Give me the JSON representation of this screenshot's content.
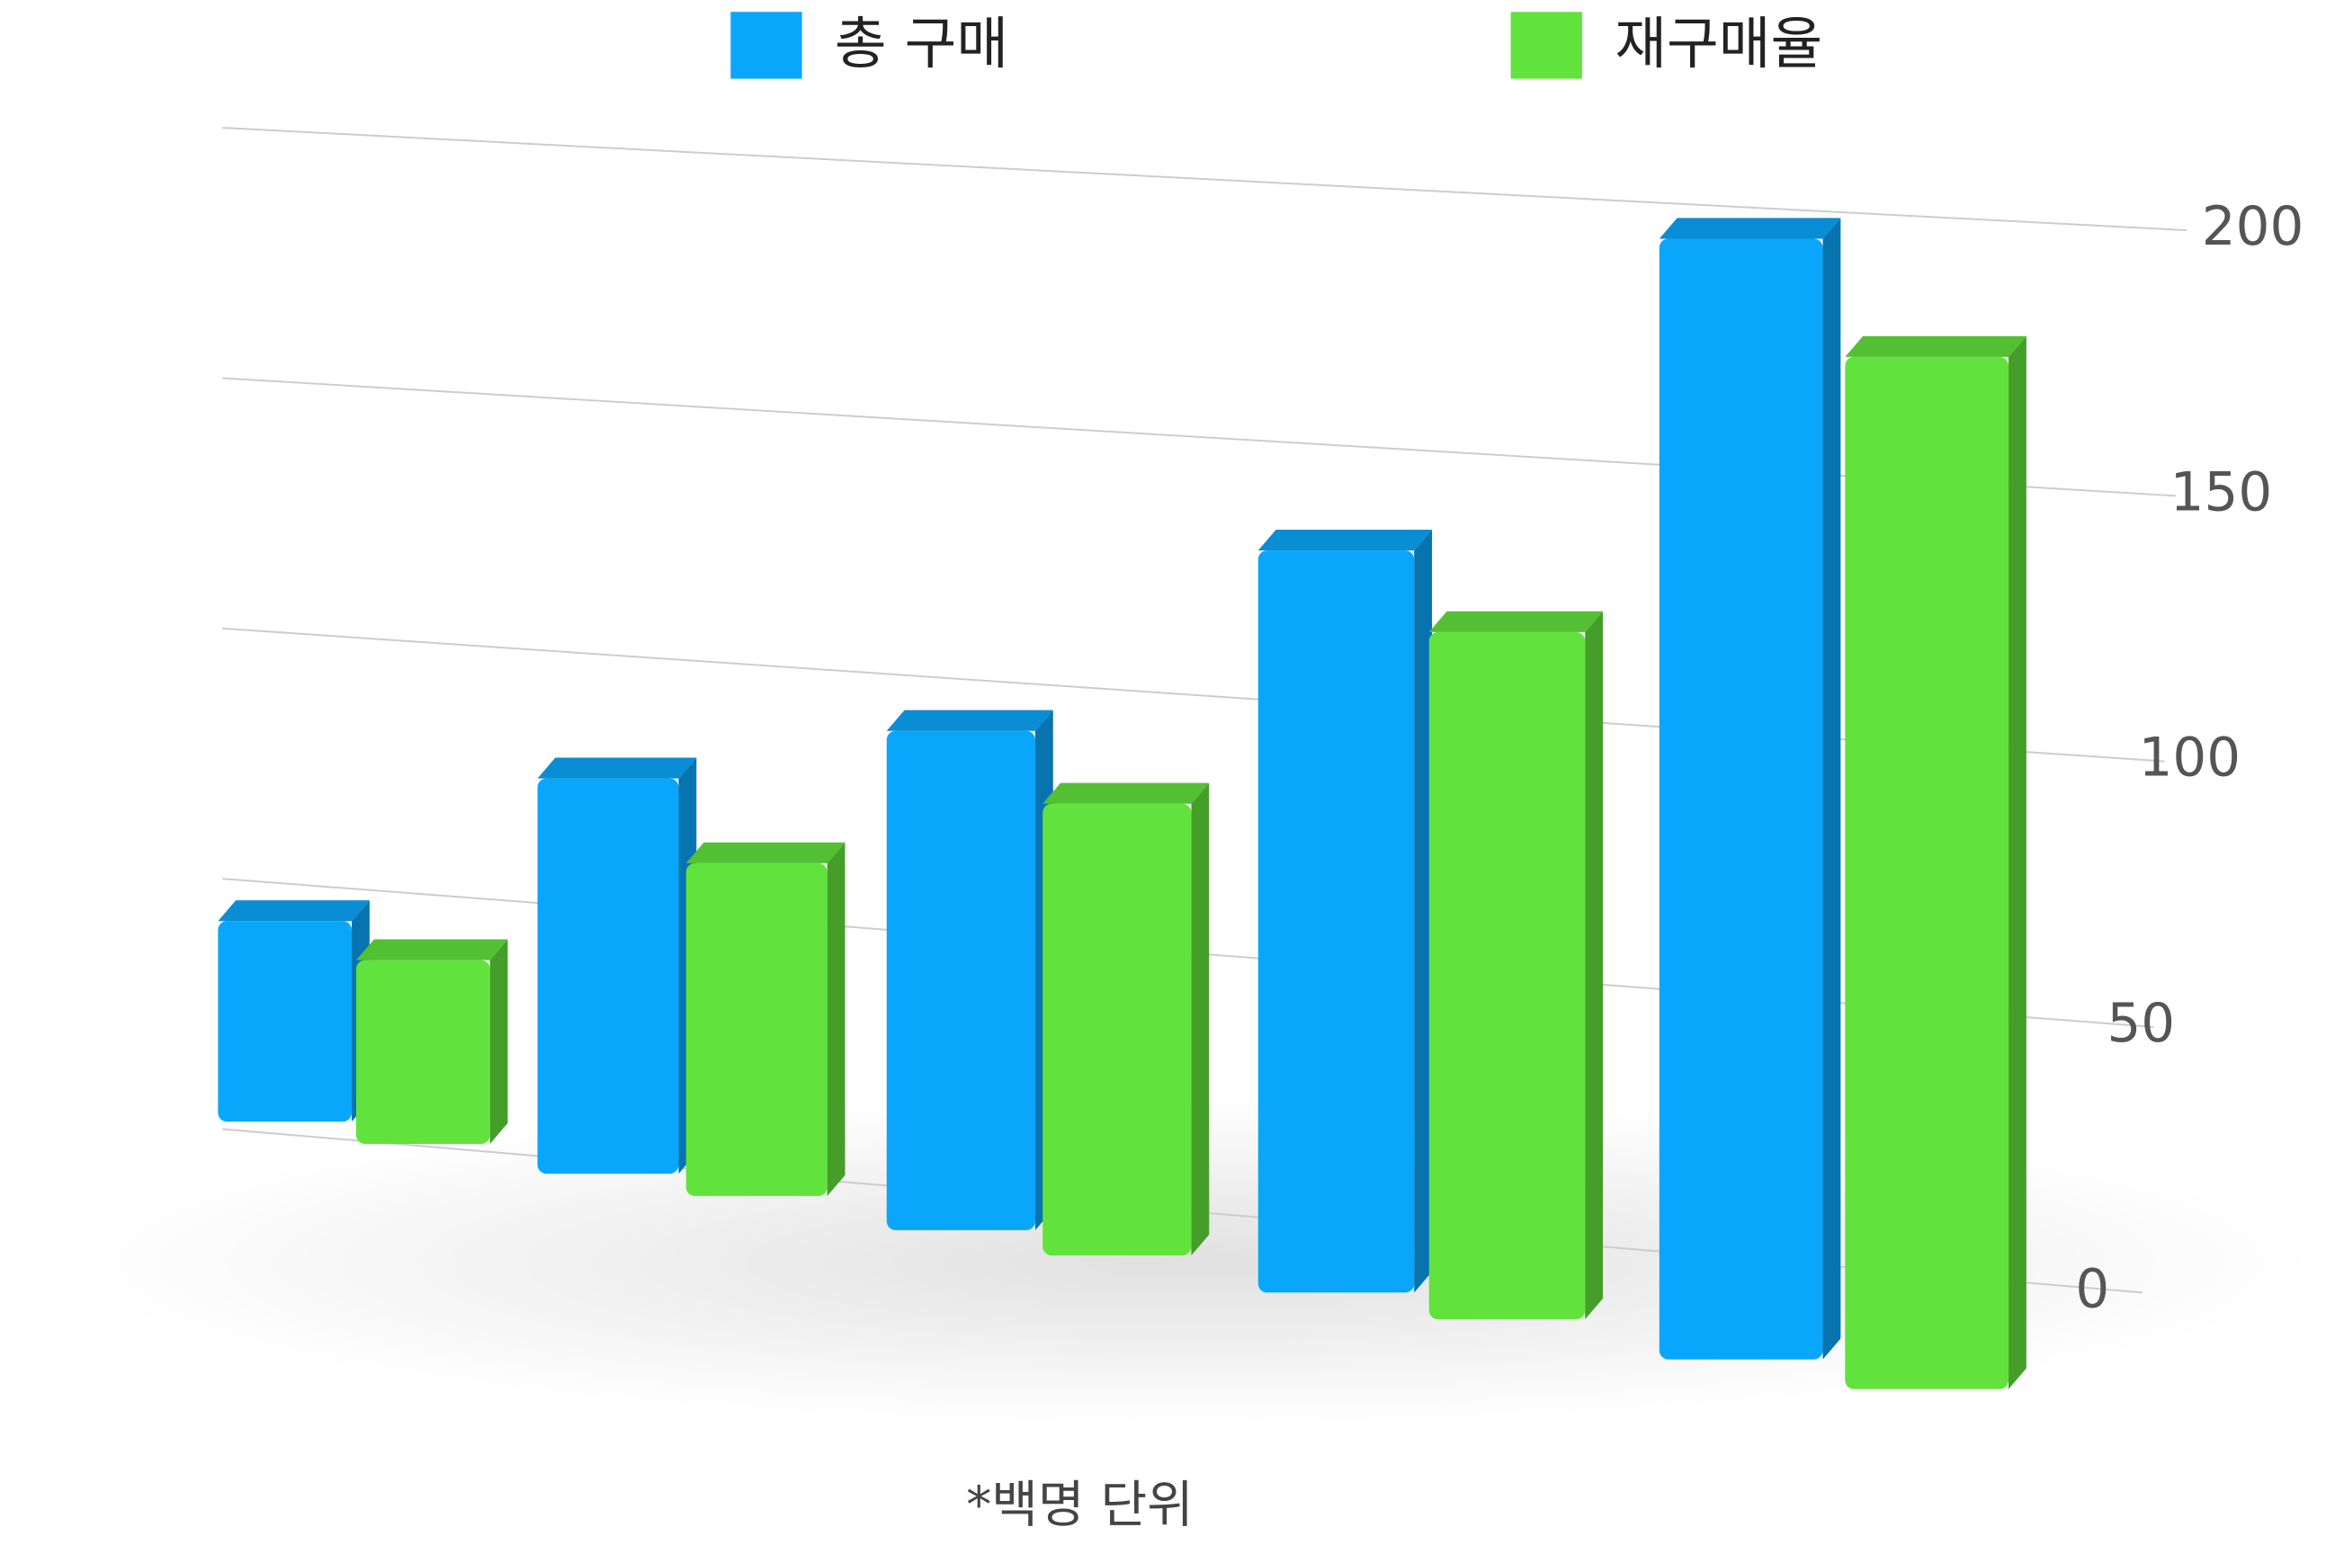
{
  "chart_data": {
    "type": "bar3d",
    "categories": [
      null,
      null,
      null,
      null,
      null
    ],
    "series": [
      {
        "name": "총 구매",
        "color": "#0aa6fb",
        "values": [
          60,
          95,
          105,
          135,
          190
        ]
      },
      {
        "name": "재구매율",
        "color": "#62e23c",
        "values": [
          55,
          80,
          95,
          125,
          175
        ]
      }
    ],
    "ylim": [
      0,
      200
    ],
    "yticks": [
      0,
      50,
      100,
      150,
      200
    ],
    "grid": true,
    "note": "*백명 단위"
  }
}
